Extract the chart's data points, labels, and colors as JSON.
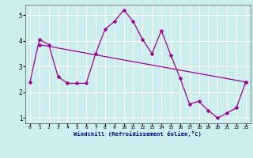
{
  "line_color": "#990099",
  "bg_color": "#cceeee",
  "grid_color": "#ffffff",
  "xlim": [
    -0.5,
    23.5
  ],
  "ylim": [
    0.8,
    5.4
  ],
  "xticks": [
    0,
    1,
    2,
    3,
    4,
    5,
    6,
    7,
    8,
    9,
    10,
    11,
    12,
    13,
    14,
    15,
    16,
    17,
    18,
    19,
    20,
    21,
    22,
    23
  ],
  "yticks": [
    1,
    2,
    3,
    4,
    5
  ],
  "xlabel": "Windchill (Refroidissement éolien,°C)",
  "line1_x": [
    0,
    1,
    2,
    3,
    4,
    5,
    6,
    7,
    8,
    9,
    10,
    11,
    12,
    13,
    14,
    15,
    16,
    17,
    18,
    19,
    20,
    21,
    22,
    23
  ],
  "line1_y": [
    2.4,
    4.05,
    3.85,
    2.6,
    2.35,
    2.35,
    2.35,
    3.5,
    4.45,
    4.75,
    5.2,
    4.75,
    4.05,
    3.5,
    4.4,
    3.45,
    2.55,
    1.55,
    1.65,
    1.3,
    1.0,
    1.2,
    1.4,
    2.4
  ],
  "line2_x": [
    1,
    23
  ],
  "line2_y": [
    3.85,
    2.4
  ]
}
